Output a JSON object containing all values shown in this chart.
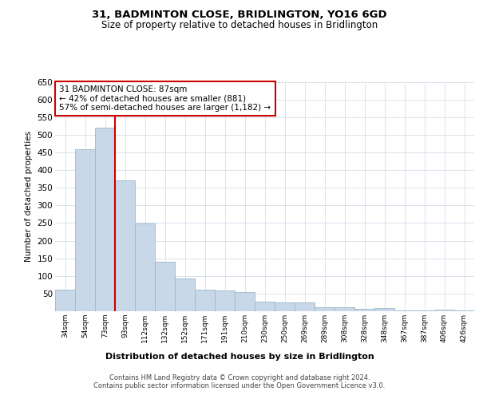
{
  "title": "31, BADMINTON CLOSE, BRIDLINGTON, YO16 6GD",
  "subtitle": "Size of property relative to detached houses in Bridlington",
  "xlabel": "Distribution of detached houses by size in Bridlington",
  "ylabel": "Number of detached properties",
  "bar_labels": [
    "34sqm",
    "54sqm",
    "73sqm",
    "93sqm",
    "112sqm",
    "132sqm",
    "152sqm",
    "171sqm",
    "191sqm",
    "210sqm",
    "230sqm",
    "250sqm",
    "269sqm",
    "289sqm",
    "308sqm",
    "328sqm",
    "348sqm",
    "367sqm",
    "387sqm",
    "406sqm",
    "426sqm"
  ],
  "bar_values": [
    62,
    458,
    520,
    370,
    248,
    140,
    93,
    62,
    58,
    55,
    27,
    26,
    26,
    11,
    12,
    6,
    8,
    3,
    3,
    5,
    3
  ],
  "bar_color": "#c8d8e8",
  "bar_edgecolor": "#9ab8cc",
  "ylim": [
    0,
    650
  ],
  "yticks": [
    0,
    50,
    100,
    150,
    200,
    250,
    300,
    350,
    400,
    450,
    500,
    550,
    600,
    650
  ],
  "vline_x": 2.5,
  "vline_color": "#cc0000",
  "annotation_text": "31 BADMINTON CLOSE: 87sqm\n← 42% of detached houses are smaller (881)\n57% of semi-detached houses are larger (1,182) →",
  "annotation_box_color": "#ffffff",
  "annotation_box_edgecolor": "#cc0000",
  "footer_text": "Contains HM Land Registry data © Crown copyright and database right 2024.\nContains public sector information licensed under the Open Government Licence v3.0.",
  "background_color": "#ffffff",
  "grid_color": "#ccd8e8"
}
